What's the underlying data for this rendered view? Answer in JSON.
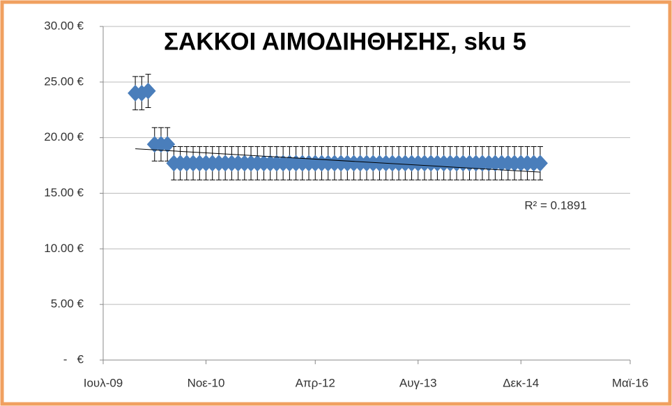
{
  "chart_data": {
    "type": "scatter",
    "title": "ΣΑΚΚΟΙ ΑΙΜΟΔΙΗΘΗΣΗΣ, sku 5",
    "x": [
      "2009-12",
      "2010-01",
      "2010-02",
      "2010-03",
      "2010-04",
      "2010-05",
      "2010-06",
      "2010-07",
      "2010-08",
      "2010-09",
      "2010-10",
      "2010-11",
      "2010-12",
      "2011-01",
      "2011-02",
      "2011-03",
      "2011-04",
      "2011-05",
      "2011-06",
      "2011-07",
      "2011-08",
      "2011-09",
      "2011-10",
      "2011-11",
      "2011-12",
      "2012-01",
      "2012-02",
      "2012-03",
      "2012-04",
      "2012-05",
      "2012-06",
      "2012-07",
      "2012-08",
      "2012-09",
      "2012-10",
      "2012-11",
      "2012-12",
      "2013-01",
      "2013-02",
      "2013-03",
      "2013-04",
      "2013-05",
      "2013-06",
      "2013-07",
      "2013-08",
      "2013-09",
      "2013-10",
      "2013-11",
      "2013-12",
      "2014-01",
      "2014-02",
      "2014-03",
      "2014-04",
      "2014-05",
      "2014-06",
      "2014-07",
      "2014-08",
      "2014-09",
      "2014-10",
      "2014-11",
      "2014-12",
      "2015-01",
      "2015-02",
      "2015-03"
    ],
    "series": [
      {
        "color": "#4a7ebb",
        "values": [
          24.0,
          24.0,
          24.2,
          19.4,
          19.4,
          19.4,
          17.7,
          17.7,
          17.7,
          17.7,
          17.7,
          17.7,
          17.7,
          17.7,
          17.7,
          17.7,
          17.7,
          17.7,
          17.7,
          17.7,
          17.7,
          17.7,
          17.7,
          17.7,
          17.7,
          17.7,
          17.7,
          17.7,
          17.7,
          17.7,
          17.7,
          17.7,
          17.7,
          17.7,
          17.7,
          17.7,
          17.7,
          17.7,
          17.7,
          17.7,
          17.7,
          17.7,
          17.7,
          17.7,
          17.7,
          17.7,
          17.7,
          17.7,
          17.7,
          17.7,
          17.7,
          17.7,
          17.7,
          17.7,
          17.7,
          17.7,
          17.7,
          17.7,
          17.7,
          17.7,
          17.7,
          17.7,
          17.7,
          17.7
        ]
      }
    ],
    "error": 1.5,
    "trendline": {
      "x": [
        "2009-12",
        "2015-03"
      ],
      "values": [
        19.0,
        16.9
      ]
    },
    "annotation": "R² = 0.1891",
    "xlim": [
      "2009-07",
      "2016-05"
    ],
    "xticks": [
      {
        "value": "2009-07",
        "label": "Ιουλ-09"
      },
      {
        "value": "2010-11",
        "label": "Νοε-10"
      },
      {
        "value": "2012-04",
        "label": "Απρ-12"
      },
      {
        "value": "2013-08",
        "label": "Αυγ-13"
      },
      {
        "value": "2014-12",
        "label": "Δεκ-14"
      },
      {
        "value": "2016-05",
        "label": "Μαϊ-16"
      }
    ],
    "ylim": [
      0,
      30
    ],
    "yticks": [
      {
        "value": 0,
        "label": "-   €"
      },
      {
        "value": 5,
        "label": "5.00 €"
      },
      {
        "value": 10,
        "label": "10.00 €"
      },
      {
        "value": 15,
        "label": "15.00 €"
      },
      {
        "value": 20,
        "label": "20.00 €"
      },
      {
        "value": 25,
        "label": "25.00 €"
      },
      {
        "value": 30,
        "label": "30.00 €"
      }
    ],
    "grid": true
  }
}
